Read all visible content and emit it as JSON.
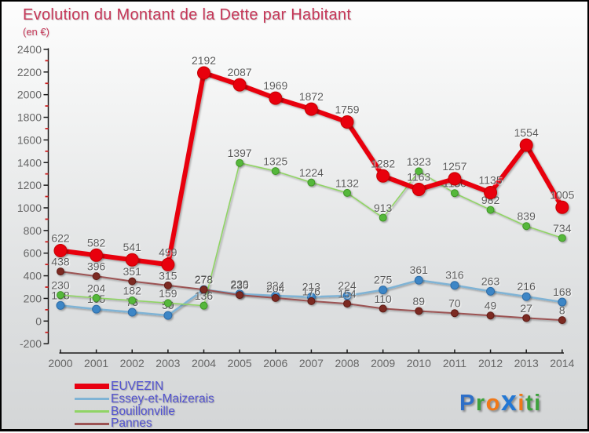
{
  "title": "Evolution du Montant de la Dette par Habitant",
  "subtitle": "(en €)",
  "title_color": "#c63758",
  "legend_text_color": "#5353d1",
  "axis_label_color": "#666666",
  "value_label_color": "#595959",
  "minor_tick_color": "#cc2020",
  "chart_data": {
    "type": "line",
    "title": "Evolution du Montant de la Dette par Habitant",
    "subtitle": "(en €)",
    "x": [
      2000,
      2001,
      2002,
      2003,
      2004,
      2005,
      2006,
      2007,
      2008,
      2009,
      2010,
      2011,
      2012,
      2013,
      2014
    ],
    "ylim": [
      -200,
      2400
    ],
    "ytick_step": 200,
    "grid": false,
    "legend_position": "bottom-left",
    "series": [
      {
        "name": "EUVEZIN",
        "color": "#e80011",
        "dot_color": "#e80011",
        "dot_stroke": "#c40000",
        "values": [
          622,
          582,
          541,
          499,
          2192,
          2087,
          1969,
          1872,
          1759,
          1282,
          1163,
          1257,
          1135,
          1554,
          1005
        ]
      },
      {
        "name": "Essey-et-Maizerais",
        "color": "#7fb3d5",
        "dot_color": "#3e86c6",
        "dot_stroke": "#2e6ca6",
        "values": [
          138,
          105,
          78,
          50,
          278,
          239,
          224,
          213,
          224,
          275,
          361,
          316,
          263,
          216,
          168
        ]
      },
      {
        "name": "Bouillonville",
        "color": "#90d465",
        "dot_color": "#55b83a",
        "dot_stroke": "#3f9428",
        "values": [
          230,
          204,
          182,
          159,
          136,
          1397,
          1325,
          1224,
          1132,
          913,
          1323,
          1130,
          982,
          839,
          734
        ]
      },
      {
        "name": "Pannes",
        "color": "#9c5353",
        "dot_color": "#7b2a23",
        "dot_stroke": "#5e1d18",
        "values": [
          438,
          396,
          351,
          315,
          278,
          230,
          204,
          176,
          154,
          110,
          89,
          70,
          49,
          27,
          8
        ]
      }
    ]
  },
  "logo": {
    "text": "Proxiti",
    "letters": [
      {
        "ch": "P",
        "color": "#2e6fc8",
        "big": false
      },
      {
        "ch": "r",
        "color": "#3da23d",
        "big": false
      },
      {
        "ch": "o",
        "color": "#f07818",
        "big": false
      },
      {
        "ch": "x",
        "color": "#2277d4",
        "big": true
      },
      {
        "ch": "i",
        "color": "#f07818",
        "big": false
      },
      {
        "ch": "t",
        "color": "#3da23d",
        "big": false
      },
      {
        "ch": "i",
        "color": "#3da23d",
        "big": false
      }
    ]
  }
}
